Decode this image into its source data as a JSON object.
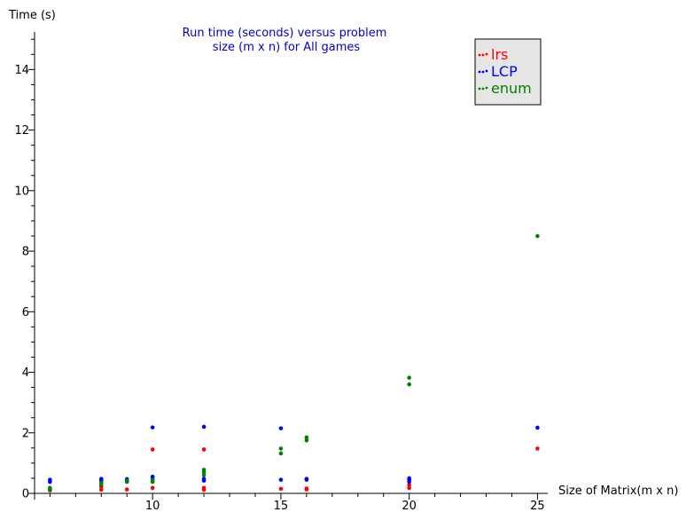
{
  "chart_data": {
    "type": "scatter",
    "title_lines": [
      "Run time (seconds) versus problem",
      "size (m x n) for All games"
    ],
    "title_color": "#0000cc",
    "xlabel": "Size of Matrix(m x n)",
    "ylabel": "Time (s)",
    "xlim": [
      5.4,
      25.4
    ],
    "ylim": [
      0,
      15.3
    ],
    "x_ticks": [
      10,
      15,
      20,
      25
    ],
    "y_ticks": [
      0,
      2,
      4,
      6,
      8,
      10,
      12,
      14
    ],
    "x_tick_labels": [
      "10",
      "15",
      "20",
      "25"
    ],
    "y_tick_labels": [
      "0",
      "2",
      "4",
      "6",
      "8",
      "10",
      "12",
      "14"
    ],
    "grid": false,
    "legend_position": "top-right",
    "series": [
      {
        "name": "lrs",
        "color": "#ff0000",
        "points": [
          [
            6,
            0.1
          ],
          [
            6,
            0.12
          ],
          [
            8,
            0.12
          ],
          [
            8,
            0.22
          ],
          [
            9,
            0.13
          ],
          [
            10,
            0.18
          ],
          [
            10,
            1.45
          ],
          [
            12,
            0.12
          ],
          [
            12,
            0.18
          ],
          [
            12,
            1.45
          ],
          [
            15,
            0.15
          ],
          [
            16,
            0.13
          ],
          [
            16,
            0.16
          ],
          [
            20,
            0.18
          ],
          [
            20,
            0.28
          ],
          [
            25,
            1.48
          ]
        ]
      },
      {
        "name": "LCP",
        "color": "#0000ff",
        "points": [
          [
            6,
            0.38
          ],
          [
            6,
            0.45
          ],
          [
            8,
            0.42
          ],
          [
            8,
            0.48
          ],
          [
            9,
            0.42
          ],
          [
            9,
            0.47
          ],
          [
            10,
            0.48
          ],
          [
            10,
            0.55
          ],
          [
            10,
            2.18
          ],
          [
            12,
            0.42
          ],
          [
            12,
            0.48
          ],
          [
            12,
            2.2
          ],
          [
            15,
            0.45
          ],
          [
            15,
            2.15
          ],
          [
            16,
            0.45
          ],
          [
            16,
            0.48
          ],
          [
            20,
            0.38
          ],
          [
            20,
            0.45
          ],
          [
            20,
            0.5
          ],
          [
            25,
            2.17
          ]
        ]
      },
      {
        "name": "enum",
        "color": "#008000",
        "points": [
          [
            6,
            0.12
          ],
          [
            6,
            0.18
          ],
          [
            8,
            0.28
          ],
          [
            8,
            0.35
          ],
          [
            9,
            0.38
          ],
          [
            9,
            0.42
          ],
          [
            10,
            0.38
          ],
          [
            10,
            0.45
          ],
          [
            12,
            0.6
          ],
          [
            12,
            0.7
          ],
          [
            12,
            0.78
          ],
          [
            15,
            1.32
          ],
          [
            15,
            1.48
          ],
          [
            16,
            1.75
          ],
          [
            16,
            1.85
          ],
          [
            20,
            3.6
          ],
          [
            20,
            3.82
          ],
          [
            25,
            8.5
          ]
        ]
      }
    ]
  }
}
